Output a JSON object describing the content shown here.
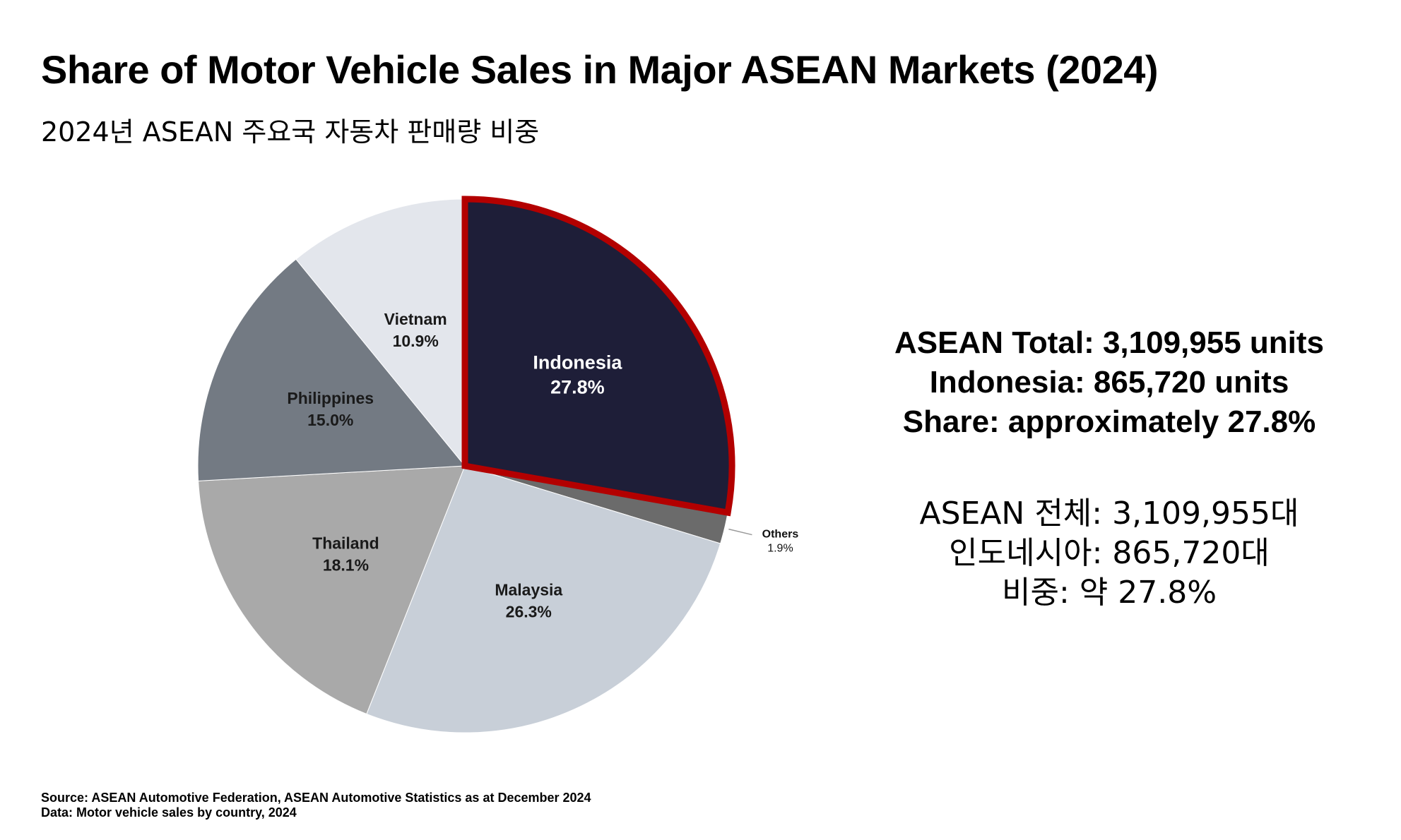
{
  "header": {
    "title": "Share of Motor Vehicle Sales in Major ASEAN Markets (2024)",
    "subtitle": "2024년 ASEAN 주요국 자동차 판매량 비중"
  },
  "summary_en": {
    "line1": "ASEAN Total: 3,109,955 units",
    "line2": "Indonesia: 865,720 units",
    "line3": "Share: approximately 27.8%"
  },
  "summary_ko": {
    "line1": "ASEAN 전체: 3,109,955대",
    "line2": "인도네시아: 865,720대",
    "line3": "비중: 약 27.8%"
  },
  "footer": {
    "source": "Source: ASEAN Automotive Federation, ASEAN Automotive Statistics as at December 2024",
    "data_note": "Data: Motor vehicle sales by country, 2024"
  },
  "chart_data": {
    "type": "pie",
    "title": "Share of Motor Vehicle Sales in Major ASEAN Markets (2024)",
    "subtitle": "2024년 ASEAN 주요국 자동차 판매량 비중",
    "slices": [
      {
        "name": "Indonesia",
        "label": "27.8%",
        "value": 27.8,
        "color": "#1e1e38",
        "highlight": true,
        "highlight_color": "#b30000",
        "text_color": "#ffffff"
      },
      {
        "name": "Others",
        "label": "1.9%",
        "value": 1.9,
        "color": "#6b6b6b",
        "label_outside": true
      },
      {
        "name": "Malaysia",
        "label": "26.3%",
        "value": 26.3,
        "color": "#c8cfd8"
      },
      {
        "name": "Thailand",
        "label": "18.1%",
        "value": 18.1,
        "color": "#a9a9a9"
      },
      {
        "name": "Philippines",
        "label": "15.0%",
        "value": 15.0,
        "color": "#737a83"
      },
      {
        "name": "Vietnam",
        "label": "10.9%",
        "value": 10.9,
        "color": "#e3e6ec"
      }
    ],
    "start": "12 o'clock",
    "direction": "clockwise",
    "legend": "none"
  }
}
